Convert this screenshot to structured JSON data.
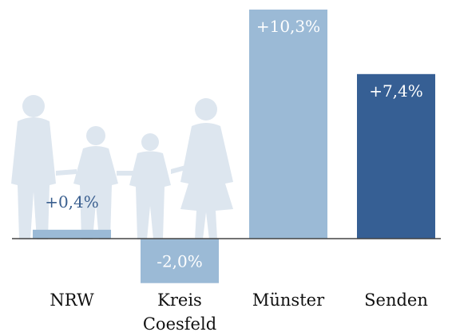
{
  "chart_data": {
    "type": "bar",
    "categories": [
      "NRW",
      "Kreis Coesfeld",
      "Münster",
      "Senden"
    ],
    "values": [
      0.4,
      -2.0,
      10.3,
      7.4
    ],
    "value_labels": [
      "+0,4%",
      "-2,0%",
      "+10,3%",
      "+7,4%"
    ],
    "colors": [
      "#9bbad6",
      "#9bbad6",
      "#9bbad6",
      "#365f94"
    ]
  }
}
